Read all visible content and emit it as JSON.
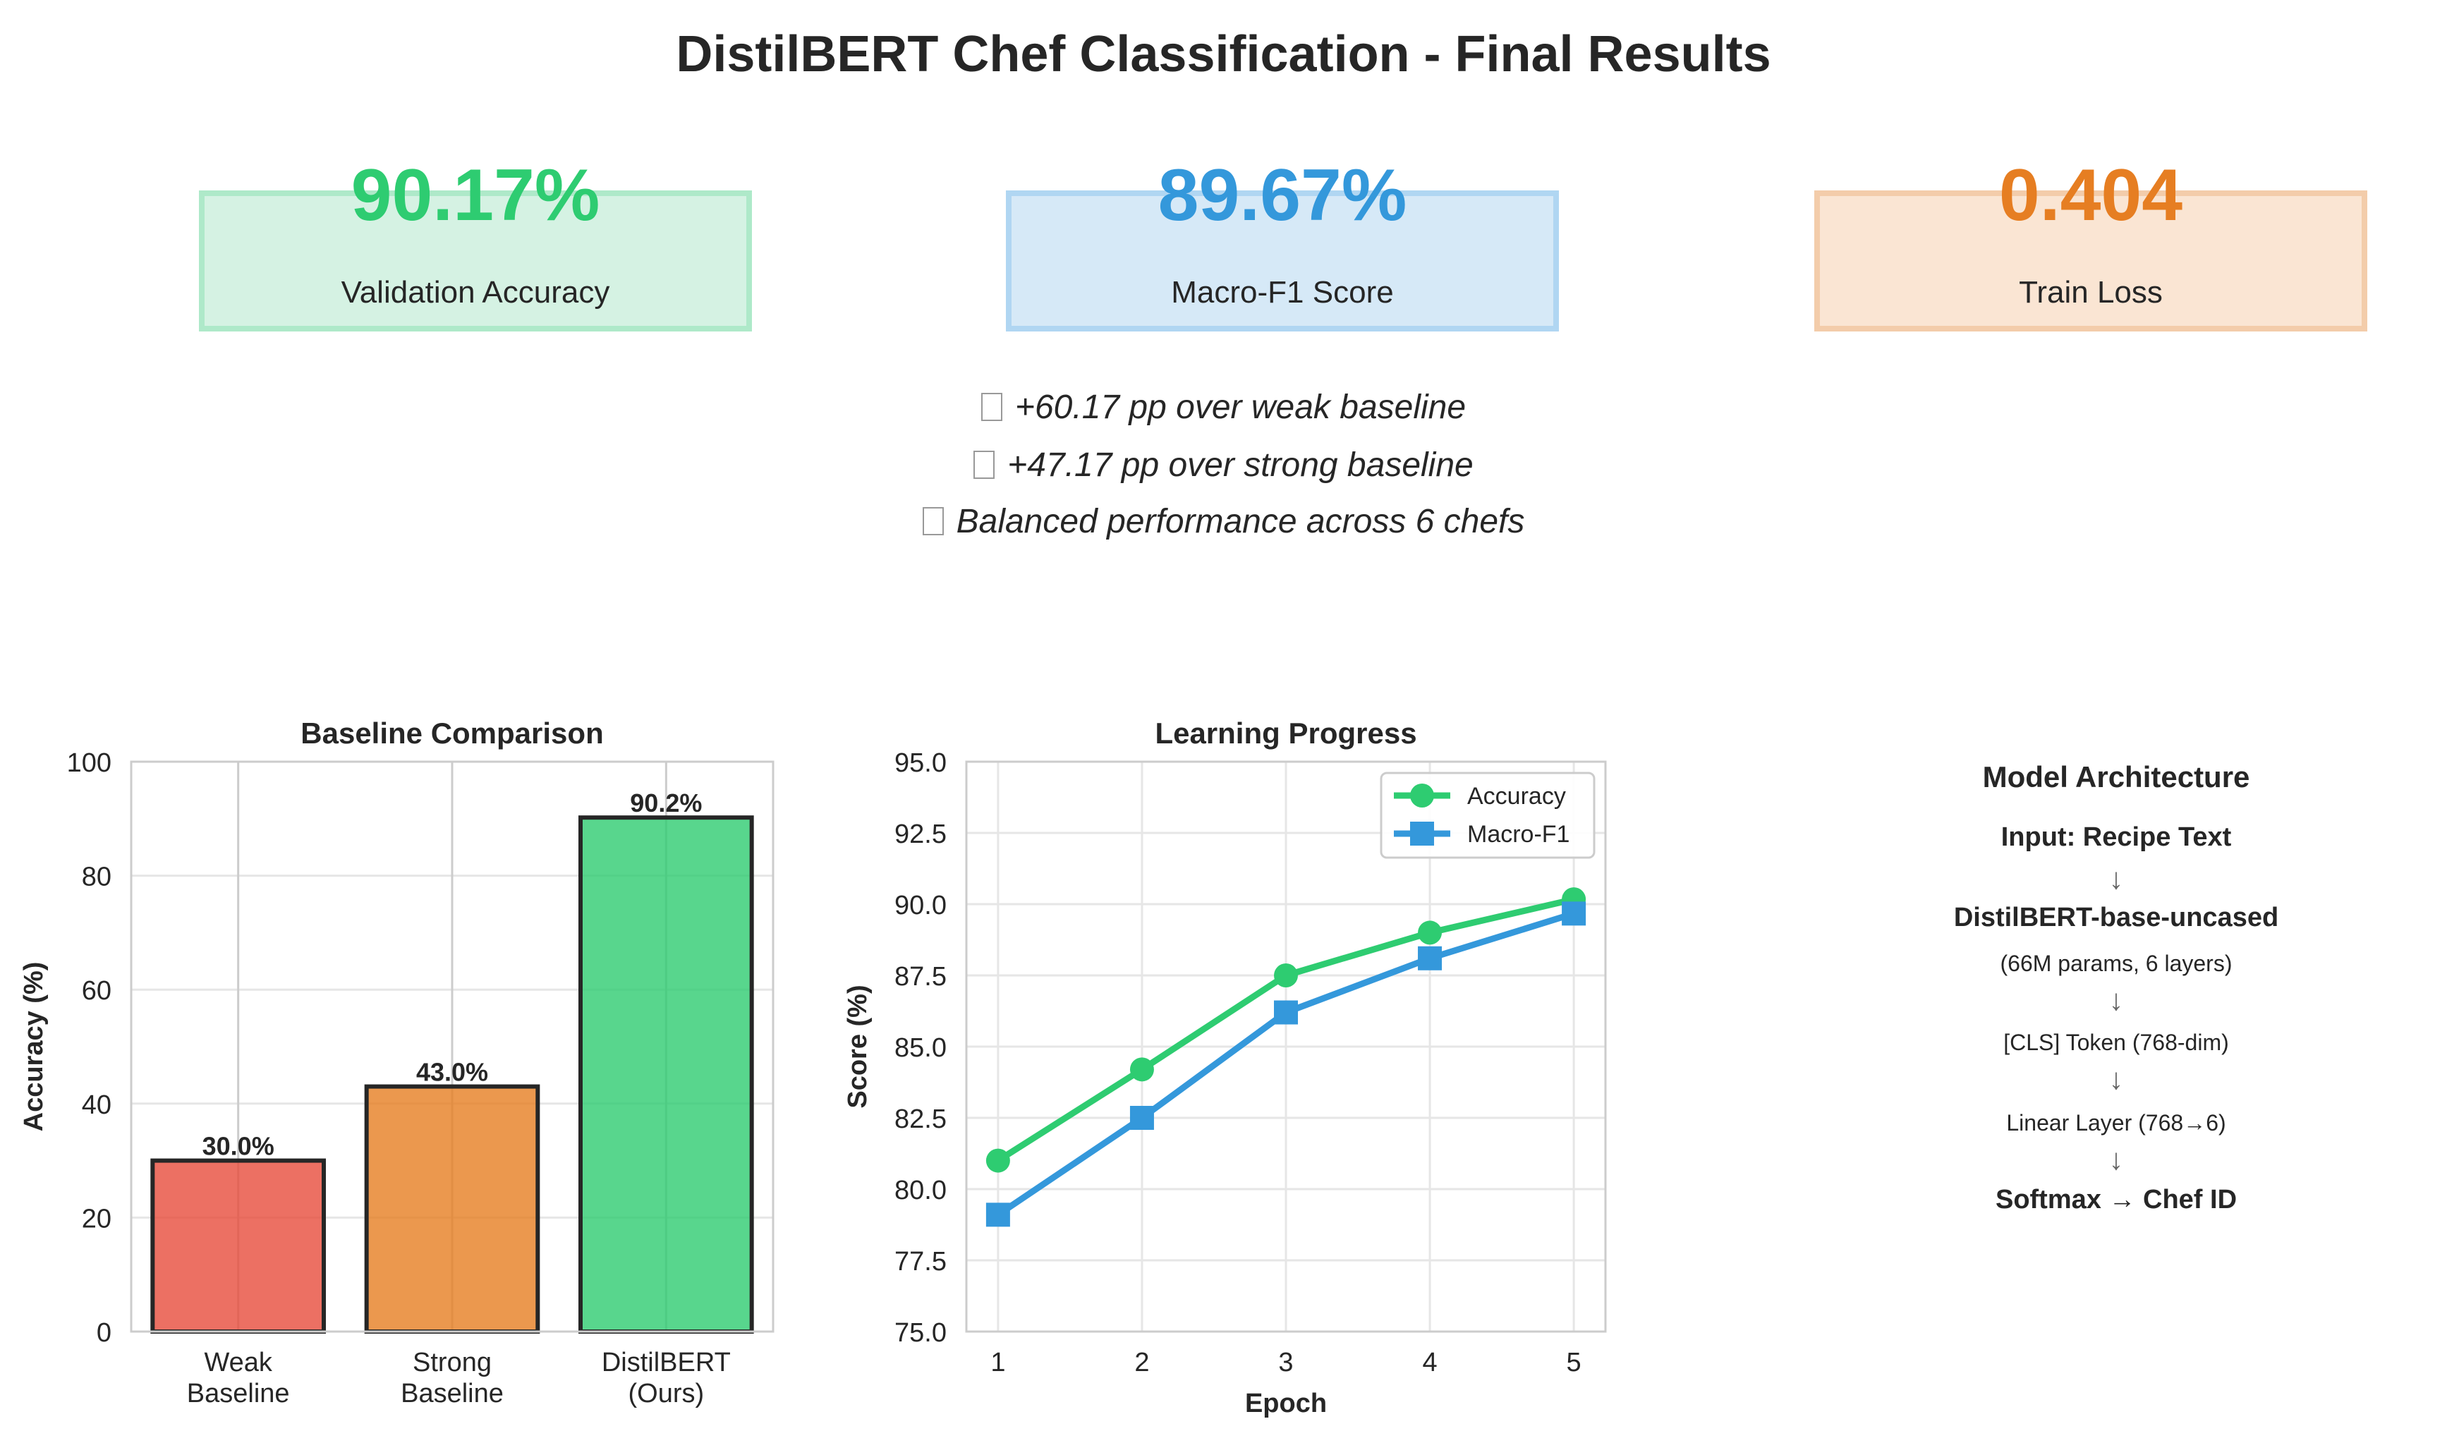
{
  "page_title": "DistilBERT Chef Classification - Final Results",
  "metrics": [
    {
      "value": "90.17%",
      "label": "Validation Accuracy",
      "color": "#2ecc71",
      "bg": "#d5f2e3",
      "border": "#aee9c9"
    },
    {
      "value": "89.67%",
      "label": "Macro-F1 Score",
      "color": "#3498db",
      "bg": "#d6e9f7",
      "border": "#b0d6f2"
    },
    {
      "value": "0.404",
      "label": "Train Loss",
      "color": "#e67e22",
      "bg": "#fae5d3",
      "border": "#f3ccaa"
    }
  ],
  "highlights": [
    "+60.17 pp over weak baseline",
    "+47.17 pp over strong baseline",
    "Balanced performance across 6 chefs"
  ],
  "architecture": {
    "title": "Model Architecture",
    "steps": [
      {
        "text": "Input: Recipe Text",
        "bold": true
      },
      {
        "text": "DistilBERT-base-uncased",
        "bold": true
      },
      {
        "text": "(66M params, 6 layers)",
        "bold": false
      },
      {
        "text": "[CLS] Token (768-dim)",
        "bold": false
      },
      {
        "text": "Linear Layer (768→6)",
        "bold": false
      },
      {
        "text": "Softmax → Chef ID",
        "bold": true
      }
    ],
    "arrow": "↓"
  },
  "chart_data": [
    {
      "type": "bar",
      "title": "Baseline Comparison",
      "xlabel": "",
      "ylabel": "Accuracy (%)",
      "categories": [
        "Weak\nBaseline",
        "Strong\nBaseline",
        "DistilBERT\n(Ours)"
      ],
      "values": [
        30.0,
        43.0,
        90.2
      ],
      "data_labels": [
        "30.0%",
        "43.0%",
        "90.2%"
      ],
      "colors": [
        "#e74c3c",
        "#e67e22",
        "#2ecc71"
      ],
      "ylim": [
        0,
        100
      ],
      "yticks": [
        0,
        20,
        40,
        60,
        80,
        100
      ],
      "grid": true
    },
    {
      "type": "line",
      "title": "Learning Progress",
      "xlabel": "Epoch",
      "ylabel": "Score (%)",
      "x": [
        1,
        2,
        3,
        4,
        5
      ],
      "ylim": [
        75,
        95
      ],
      "yticks": [
        "75.0",
        "77.5",
        "80.0",
        "82.5",
        "85.0",
        "87.5",
        "90.0",
        "92.5",
        "95.0"
      ],
      "legend": "top-right",
      "grid": true,
      "series": [
        {
          "name": "Accuracy",
          "values": [
            81.0,
            84.2,
            87.5,
            89.0,
            90.17
          ],
          "color": "#2ecc71",
          "marker": "circle"
        },
        {
          "name": "Macro-F1",
          "values": [
            79.1,
            82.5,
            86.2,
            88.1,
            89.67
          ],
          "color": "#3498db",
          "marker": "square"
        }
      ]
    }
  ]
}
